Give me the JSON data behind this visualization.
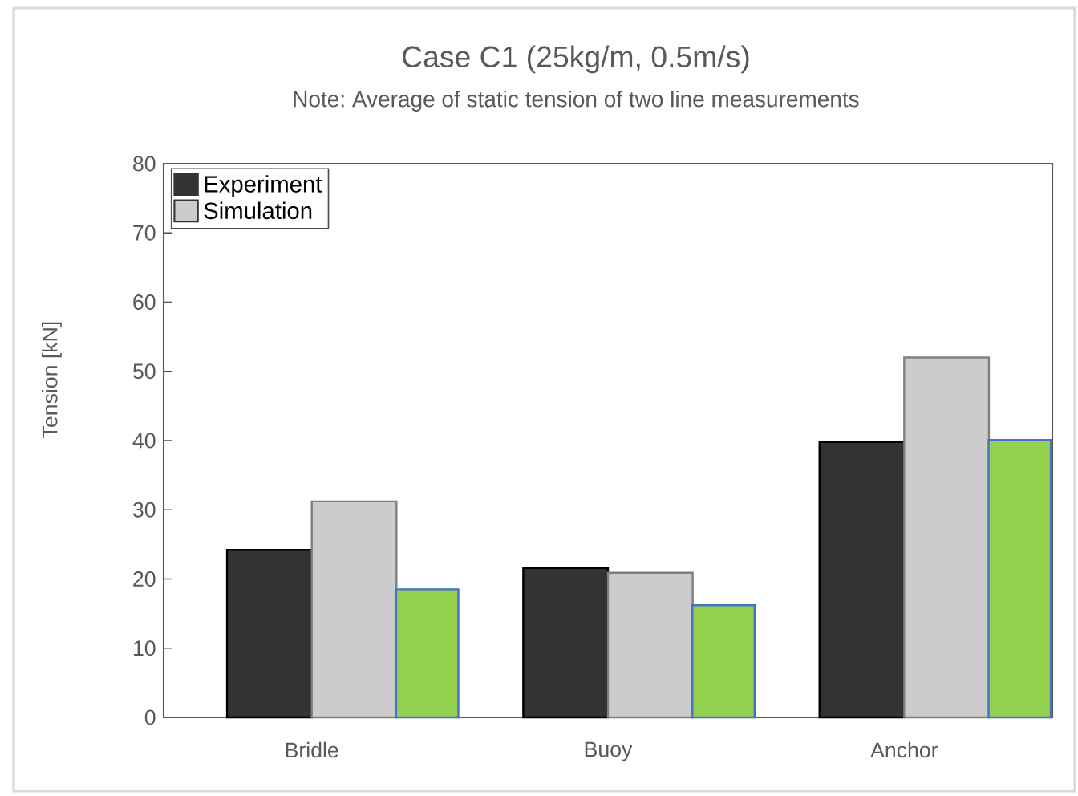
{
  "chart_data": {
    "type": "bar",
    "title": "Case C1 (25kg/m, 0.5m/s)",
    "subtitle": "Note: Average of static tension of two line measurements",
    "ylabel": "Tension [kN]",
    "categories": [
      "Bridle",
      "Buoy",
      "Anchor"
    ],
    "series": [
      {
        "name": "Experiment",
        "color": "#333333",
        "values": [
          24.2,
          21.6,
          39.8
        ]
      },
      {
        "name": "Simulation",
        "color": "#cccccc",
        "values": [
          31.2,
          20.9,
          52.0
        ]
      },
      {
        "color": "#92d050",
        "values": [
          18.5,
          16.2,
          40.1
        ]
      }
    ],
    "ylim": [
      0,
      80
    ],
    "yticks": [
      0,
      10,
      20,
      30,
      40,
      50,
      60,
      70,
      80
    ],
    "legend": "top left",
    "grid": false
  }
}
